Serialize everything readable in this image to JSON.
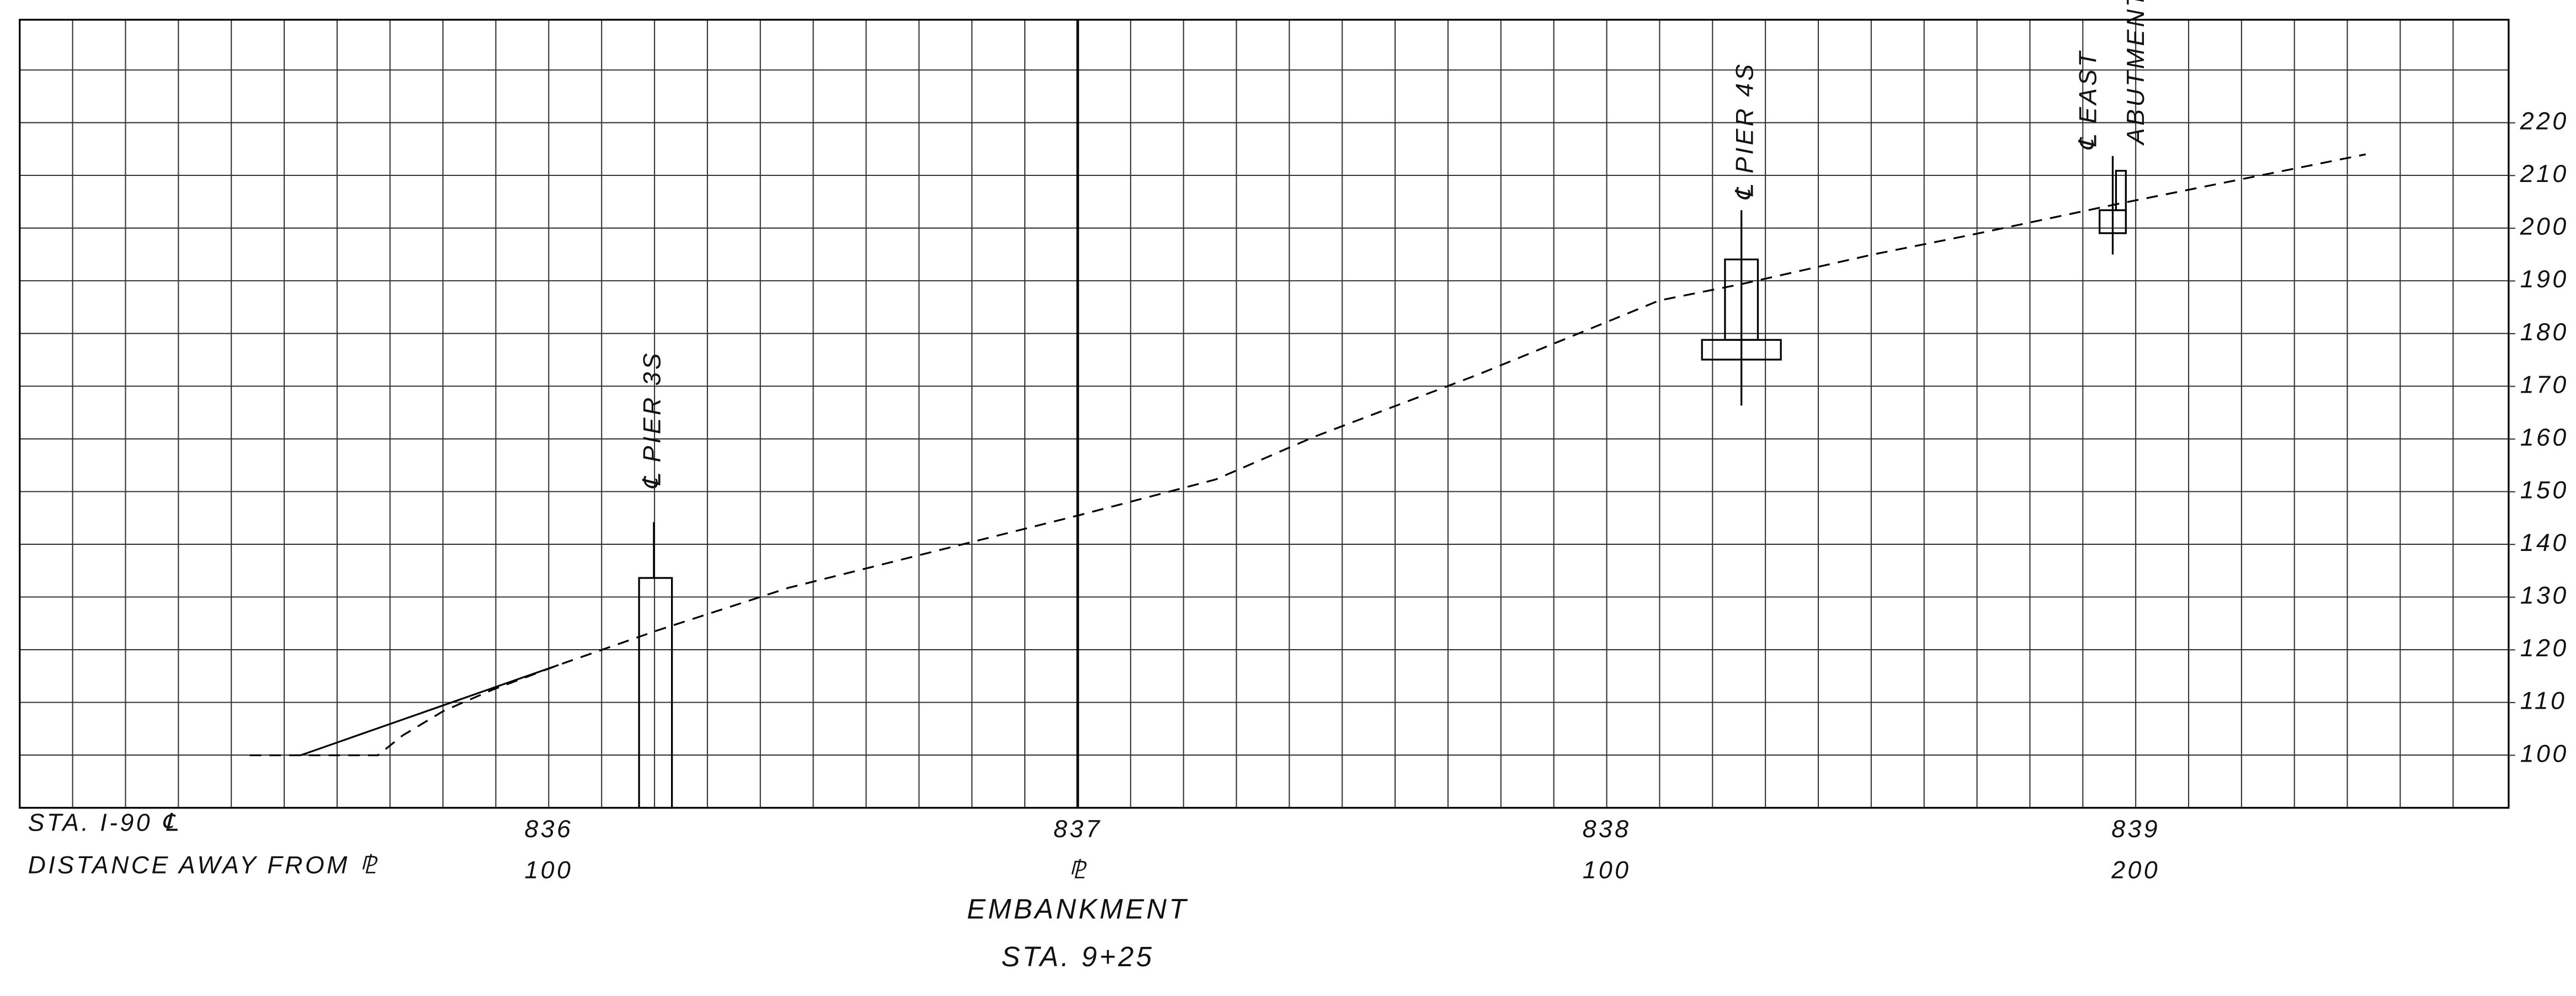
{
  "header": {
    "station_prefix": "STA. I-90 ℄",
    "distance_prefix": "DISTANCE AWAY FROM ⅊"
  },
  "stations": [
    {
      "station": "836",
      "distance": "100"
    },
    {
      "station": "837",
      "distance": "⅊"
    },
    {
      "station": "838",
      "distance": "100"
    },
    {
      "station": "839",
      "distance": "200"
    }
  ],
  "elevations": [
    100,
    110,
    120,
    130,
    140,
    150,
    160,
    170,
    180,
    190,
    200,
    210,
    220
  ],
  "annotations": {
    "pier_3s": "℄ PIER 3S",
    "pier_4s": "℄ PIER 4S",
    "east": "℄ EAST",
    "abutment": "ABUTMENT"
  },
  "footer": {
    "title": "EMBANKMENT",
    "station": "STA. 9+25"
  }
}
